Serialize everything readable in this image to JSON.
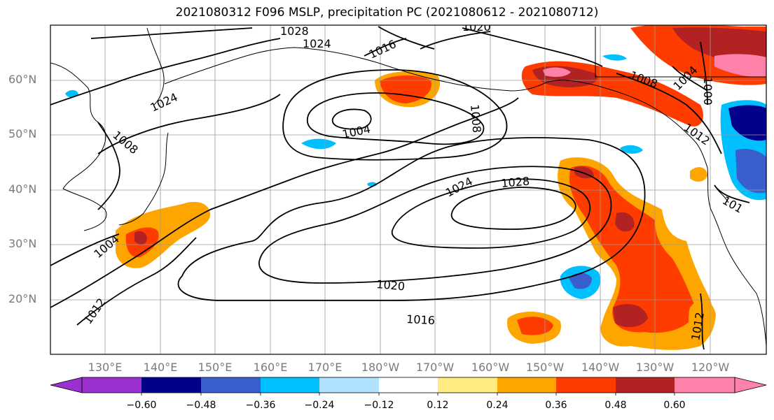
{
  "title": "2021080312 F096 MSLP, precipitation PC (2021080612 - 2021080712)",
  "lat_labels": [
    "60°N",
    "50°N",
    "40°N",
    "30°N",
    "20°N"
  ],
  "lon_labels": [
    "130°E",
    "140°E",
    "150°E",
    "160°E",
    "170°E",
    "180°W",
    "170°W",
    "160°W",
    "150°W",
    "140°W",
    "130°W",
    "120°W"
  ],
  "isobar_labels": {
    "l1028a": "1028",
    "l1024a": "1024",
    "l1020a": "1020",
    "l1016a": "1016",
    "l1004a": "1004",
    "l1008a": "1008",
    "l1024b": "1024",
    "l1008b": "1008",
    "l1004b": "1004",
    "l1024c": "1024",
    "l1028b": "1028",
    "l1020b": "1020",
    "l1016b": "1016",
    "l1012a": "1012",
    "l1008c": "1008",
    "l1004c": "1004",
    "l1012b": "1012",
    "l1000": "1000",
    "l1012c": "1012",
    "l1012d": "101"
  },
  "colorbar": {
    "ticks": [
      "−0.60",
      "−0.48",
      "−0.36",
      "−0.24",
      "−0.12",
      "0.12",
      "0.24",
      "0.36",
      "0.48",
      "0.60"
    ],
    "colors": [
      "#9b30d0",
      "#00008b",
      "#3a5fcd",
      "#00bfff",
      "#b0e2ff",
      "#ffffff",
      "#ffeb80",
      "#ffa500",
      "#ff3c00",
      "#b22222",
      "#ff82ab"
    ]
  }
}
